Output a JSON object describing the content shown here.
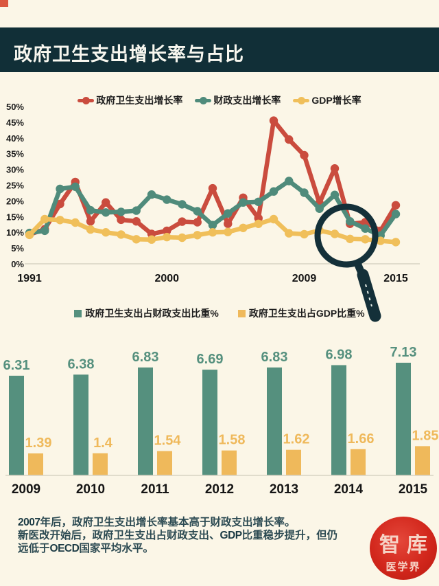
{
  "header": {
    "title": "政府卫生支出增长率与占比"
  },
  "colors": {
    "background": "#FBF6E7",
    "header_bg": "#112F37",
    "corner_red": "#DB5740",
    "red": "#CA4C3E",
    "teal": "#4F8B7B",
    "yellow": "#F0BF5A",
    "bar_teal": "#55907E",
    "bar_yellow": "#EFB95B",
    "magnifier": "#143039",
    "footer_text": "#2C4A52",
    "logo_red": "#D2271C"
  },
  "chart_data": [
    {
      "type": "line",
      "title": "",
      "x": [
        1991,
        1992,
        1993,
        1994,
        1995,
        1996,
        1997,
        1998,
        1999,
        2000,
        2001,
        2002,
        2003,
        2004,
        2005,
        2006,
        2007,
        2008,
        2009,
        2010,
        2011,
        2012,
        2013,
        2014,
        2015
      ],
      "x_axis_tick_labels": [
        "1991",
        "2000",
        "2009",
        "2015"
      ],
      "ylim": [
        0,
        50
      ],
      "y_tick_labels": [
        "50%",
        "45%",
        "40%",
        "35%",
        "30%",
        "25%",
        "20%",
        "15%",
        "10%",
        "5%",
        "0%"
      ],
      "unit": "%",
      "grid": false,
      "legend_position": "top",
      "series": [
        {
          "name": "政府卫生支出增长率",
          "color": "#CA4C3E",
          "values": [
            9.3,
            11,
            19,
            26,
            13.5,
            19.5,
            14,
            13.5,
            9.5,
            10.5,
            13.4,
            13.2,
            24,
            12.7,
            21,
            14.5,
            45.5,
            39.5,
            34.5,
            19.3,
            30.3,
            12.7,
            13.2,
            10.5,
            18.6
          ]
        },
        {
          "name": "财政支出增长率",
          "color": "#4F8B7B",
          "values": [
            9.8,
            10.5,
            23.8,
            24.5,
            17,
            16.3,
            16.5,
            16.9,
            22,
            20.4,
            18.9,
            16.7,
            12.3,
            16,
            19.5,
            19.7,
            23,
            26.3,
            22.6,
            17.5,
            21.9,
            13.5,
            11.2,
            9,
            15.8
          ]
        },
        {
          "name": "GDP增长率",
          "color": "#F0BF5A",
          "values": [
            9.2,
            14.2,
            13.9,
            13.1,
            10.9,
            10,
            9.3,
            7.8,
            7.7,
            8.5,
            8.3,
            9.1,
            10,
            10.1,
            11.4,
            12.7,
            14.2,
            9.7,
            9.4,
            10.6,
            9.5,
            7.9,
            7.8,
            7.3,
            6.9
          ]
        }
      ],
      "annotation": {
        "type": "magnifying-glass",
        "highlights_years": [
          2012,
          2013,
          2014
        ]
      }
    },
    {
      "type": "bar",
      "title": "",
      "categories": [
        "2009",
        "2010",
        "2011",
        "2012",
        "2013",
        "2014",
        "2015"
      ],
      "legend_position": "top",
      "ylim": [
        0,
        7.5
      ],
      "grid": false,
      "series": [
        {
          "name": "政府卫生支出占财政支出比重%",
          "color": "#55907E",
          "values": [
            6.31,
            6.38,
            6.83,
            6.69,
            6.83,
            6.98,
            7.13
          ],
          "labels": [
            "6.31",
            "6.38",
            "6.83",
            "6.69",
            "6.83",
            "6.98",
            "7.13"
          ]
        },
        {
          "name": "政府卫生支出占GDP比重%",
          "color": "#EFB95B",
          "values": [
            1.39,
            1.4,
            1.54,
            1.58,
            1.62,
            1.66,
            1.85
          ],
          "labels": [
            "1.39",
            "1.4",
            "1.54",
            "1.58",
            "1.62",
            "1.66",
            "1.85"
          ]
        }
      ]
    }
  ],
  "footer": {
    "lines": [
      [
        {
          "text": "2007",
          "bold": true
        },
        {
          "text": "年后，政府卫生支出增长率基本高于财政支出增长率。",
          "bold": false
        }
      ],
      [
        {
          "text": "新医改开始后，政府卫生支出占财政支出、",
          "bold": false
        },
        {
          "text": "GDP",
          "bold": true
        },
        {
          "text": "比重稳步提升，但仍",
          "bold": false
        }
      ],
      [
        {
          "text": "远低于",
          "bold": false
        },
        {
          "text": "OECD",
          "bold": true
        },
        {
          "text": "国家平均水平。",
          "bold": false
        }
      ]
    ]
  },
  "logo": {
    "main": "智库",
    "sub": "医学界"
  }
}
